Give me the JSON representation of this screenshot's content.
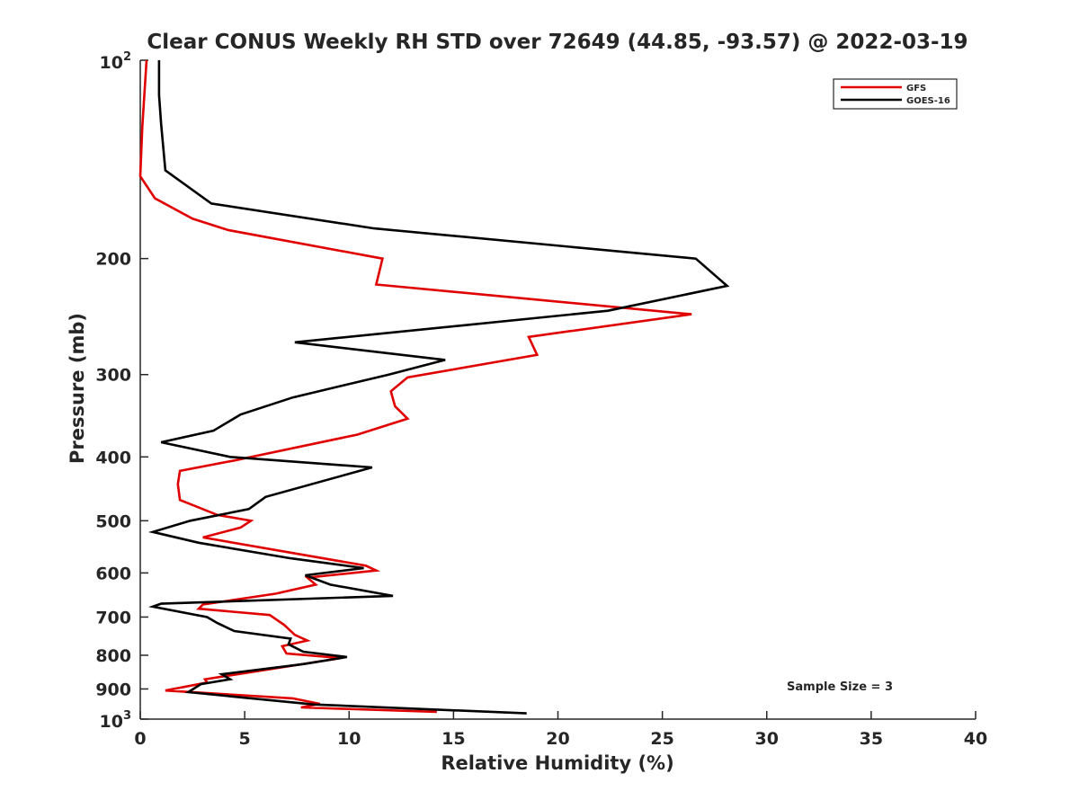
{
  "chart_data": {
    "type": "line",
    "title": "Clear CONUS Weekly RH STD over 72649 (44.85, -93.57) @ 2022-03-19",
    "xlabel": "Relative Humidity (%)",
    "ylabel": "Pressure (mb)",
    "xlim": [
      0,
      40
    ],
    "ylim": [
      100,
      1000
    ],
    "y_scale": "log",
    "y_reversed": true,
    "grid": false,
    "legend_position": "top-right",
    "x_ticks": [
      0,
      5,
      10,
      15,
      20,
      25,
      30,
      35,
      40
    ],
    "x_tick_labels": [
      "0",
      "5",
      "10",
      "15",
      "20",
      "25",
      "30",
      "35",
      "40"
    ],
    "y_ticks": [
      200,
      300,
      400,
      500,
      600,
      700,
      800,
      900
    ],
    "y_tick_labels": [
      "200",
      "300",
      "400",
      "500",
      "600",
      "700",
      "800",
      "900"
    ],
    "y_decade_ticks": [
      {
        "value": 100,
        "base": "10",
        "exp": "2"
      },
      {
        "value": 1000,
        "base": "10",
        "exp": "3"
      }
    ],
    "series": [
      {
        "name": "GFS",
        "color": "#e00000",
        "points": [
          [
            0.3,
            100
          ],
          [
            0.1,
            126
          ],
          [
            0.0,
            150
          ],
          [
            0.7,
            162
          ],
          [
            2.5,
            174
          ],
          [
            4.2,
            181
          ],
          [
            11.6,
            200
          ],
          [
            11.3,
            219
          ],
          [
            26.4,
            243
          ],
          [
            18.6,
            263
          ],
          [
            19.0,
            280
          ],
          [
            12.8,
            303
          ],
          [
            12.0,
            318
          ],
          [
            12.2,
            335
          ],
          [
            12.8,
            350
          ],
          [
            10.4,
            370
          ],
          [
            4.5,
            405
          ],
          [
            1.9,
            420
          ],
          [
            1.8,
            440
          ],
          [
            1.9,
            465
          ],
          [
            3.7,
            490
          ],
          [
            5.3,
            500
          ],
          [
            4.8,
            512
          ],
          [
            3.0,
            530
          ],
          [
            10.8,
            585
          ],
          [
            11.3,
            595
          ],
          [
            8.0,
            610
          ],
          [
            8.4,
            625
          ],
          [
            6.5,
            645
          ],
          [
            3.0,
            670
          ],
          [
            2.8,
            680
          ],
          [
            6.2,
            695
          ],
          [
            6.9,
            720
          ],
          [
            7.4,
            745
          ],
          [
            8.0,
            760
          ],
          [
            6.8,
            775
          ],
          [
            7.0,
            795
          ],
          [
            9.6,
            808
          ],
          [
            3.1,
            870
          ],
          [
            3.2,
            880
          ],
          [
            1.2,
            905
          ],
          [
            7.3,
            930
          ],
          [
            8.6,
            948
          ],
          [
            7.7,
            960
          ],
          [
            14.2,
            975
          ]
        ]
      },
      {
        "name": "GOES-16",
        "color": "#000000",
        "points": [
          [
            0.9,
            100
          ],
          [
            0.9,
            113
          ],
          [
            1.0,
            125
          ],
          [
            1.2,
            147
          ],
          [
            3.4,
            165
          ],
          [
            11.2,
            180
          ],
          [
            26.6,
            200
          ],
          [
            28.1,
            220
          ],
          [
            22.4,
            240
          ],
          [
            7.4,
            268
          ],
          [
            14.6,
            285
          ],
          [
            11.9,
            300
          ],
          [
            7.3,
            325
          ],
          [
            4.8,
            345
          ],
          [
            3.5,
            365
          ],
          [
            1.0,
            380
          ],
          [
            4.3,
            400
          ],
          [
            11.1,
            415
          ],
          [
            6.0,
            460
          ],
          [
            5.2,
            480
          ],
          [
            2.4,
            500
          ],
          [
            0.6,
            520
          ],
          [
            2.8,
            540
          ],
          [
            7.2,
            570
          ],
          [
            10.7,
            590
          ],
          [
            7.9,
            605
          ],
          [
            9.1,
            625
          ],
          [
            12.1,
            650
          ],
          [
            1.0,
            668
          ],
          [
            0.6,
            675
          ],
          [
            3.2,
            700
          ],
          [
            3.7,
            715
          ],
          [
            4.5,
            735
          ],
          [
            7.2,
            755
          ],
          [
            7.1,
            770
          ],
          [
            7.8,
            790
          ],
          [
            9.9,
            805
          ],
          [
            7.8,
            825
          ],
          [
            3.9,
            855
          ],
          [
            4.3,
            870
          ],
          [
            2.9,
            885
          ],
          [
            2.3,
            910
          ],
          [
            8.3,
            950
          ],
          [
            18.5,
            980
          ]
        ]
      }
    ],
    "annotations": [
      {
        "text": "Sample Size = 3",
        "x": 33.5,
        "y": 905
      }
    ]
  }
}
